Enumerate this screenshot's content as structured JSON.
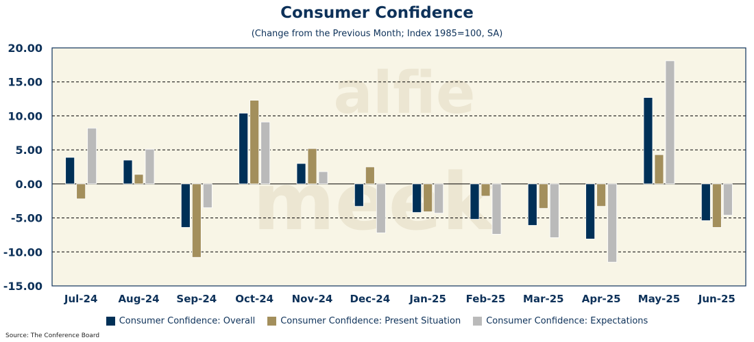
{
  "chart_data": {
    "type": "bar",
    "title": "Consumer Confidence",
    "subtitle": "(Change from the Previous Month; Index 1985=100, SA)",
    "xlabel": "",
    "ylabel": "",
    "ylim": [
      -15,
      20
    ],
    "yticks": [
      20,
      15,
      10,
      5,
      0,
      -5,
      -10,
      -15
    ],
    "ytick_labels": [
      "20.00",
      "15.00",
      "10.00",
      "5.00",
      "0.00",
      "-5.00",
      "-10.00",
      "-15.00"
    ],
    "grid": true,
    "legend_position": "bottom",
    "categories": [
      "Jul-24",
      "Aug-24",
      "Sep-24",
      "Oct-24",
      "Nov-24",
      "Dec-24",
      "Jan-25",
      "Feb-25",
      "Mar-25",
      "Apr-25",
      "May-25",
      "Jun-25"
    ],
    "series": [
      {
        "name": "Consumer Confidence: Overall",
        "color": "#003057",
        "values": [
          3.9,
          3.5,
          -6.4,
          10.4,
          3.0,
          -3.3,
          -4.2,
          -5.2,
          -6.1,
          -8.1,
          12.7,
          -5.4
        ]
      },
      {
        "name": "Consumer Confidence: Present Situation",
        "color": "#a38f5c",
        "values": [
          -2.2,
          1.4,
          -10.8,
          12.3,
          5.2,
          2.5,
          -4.1,
          -1.8,
          -3.6,
          -3.3,
          4.3,
          -6.4
        ]
      },
      {
        "name": "Consumer Confidence: Expectations",
        "color": "#bababa",
        "values": [
          8.2,
          5.1,
          -3.5,
          9.1,
          1.8,
          -7.2,
          -4.3,
          -7.4,
          -7.9,
          -11.5,
          18.1,
          -4.6
        ]
      }
    ]
  },
  "source": "Source: The Conference Board",
  "watermark": "alfie meek",
  "colors": {
    "plot_bg": "#f8f5e6",
    "axis": "#0d3159"
  }
}
